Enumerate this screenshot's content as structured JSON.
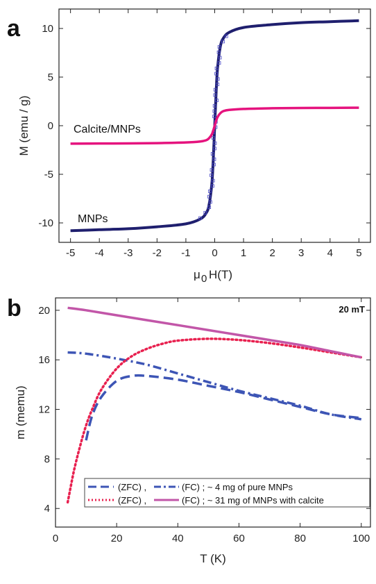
{
  "chart_data": [
    {
      "panel": "a",
      "type": "line",
      "xlabel": "H(T)",
      "xlabel_prefix": "μ",
      "xlabel_sub": "0",
      "ylabel": "M (emu / g)",
      "xlim": [
        -5.4,
        5.4
      ],
      "ylim": [
        -12,
        12
      ],
      "xticks": [
        -5,
        -4,
        -3,
        -2,
        -1,
        0,
        1,
        2,
        3,
        4,
        5
      ],
      "yticks": [
        -10,
        -5,
        0,
        5,
        10
      ],
      "colors": {
        "calcite": "#e5137e",
        "mnps": "#1f1f6e",
        "mnps_open": "#4a4ac8"
      },
      "annotations": [
        "Calcite/MNPs",
        "MNPs"
      ],
      "series": [
        {
          "name": "Calcite/MNPs",
          "x": [
            -5,
            -4,
            -3,
            -2,
            -1,
            -0.5,
            -0.3,
            -0.2,
            -0.1,
            -0.05,
            0,
            0.05,
            0.1,
            0.2,
            0.3,
            0.5,
            1,
            2,
            3,
            4,
            5
          ],
          "y": [
            -1.85,
            -1.83,
            -1.82,
            -1.79,
            -1.72,
            -1.62,
            -1.5,
            -1.3,
            -0.9,
            -0.5,
            0,
            0.5,
            0.9,
            1.3,
            1.5,
            1.62,
            1.72,
            1.79,
            1.82,
            1.83,
            1.85
          ]
        },
        {
          "name": "MNPs",
          "x": [
            -5,
            -4,
            -3,
            -2,
            -1,
            -0.5,
            -0.3,
            -0.2,
            -0.1,
            -0.05,
            0,
            0.05,
            0.1,
            0.2,
            0.3,
            0.5,
            1,
            2,
            3,
            4,
            5
          ],
          "y": [
            -10.8,
            -10.7,
            -10.6,
            -10.4,
            -10.1,
            -9.6,
            -9.0,
            -8.2,
            -6.0,
            -3.5,
            0,
            3.5,
            6.0,
            8.2,
            9.0,
            9.6,
            10.1,
            10.4,
            10.6,
            10.7,
            10.8
          ]
        }
      ]
    },
    {
      "panel": "b",
      "type": "line",
      "xlabel": "T (K)",
      "ylabel": "m (memu)",
      "xlim": [
        0,
        103
      ],
      "ylim": [
        2.5,
        21
      ],
      "xticks": [
        0,
        20,
        40,
        60,
        80,
        100
      ],
      "yticks": [
        4,
        8,
        12,
        16,
        20
      ],
      "field_label": "20 mT",
      "colors": {
        "mnps": "#3d55b5",
        "calcite_zfc": "#e8204f",
        "calcite_fc": "#c256a8"
      },
      "legend": {
        "row1": {
          "label_a": "(ZFC) ,",
          "label_b": "(FC) ; ~ 4 mg of pure MNPs"
        },
        "row2": {
          "label_a": "(ZFC) ,",
          "label_b": "(FC) ; ~ 31 mg of MNPs with calcite"
        }
      },
      "series": [
        {
          "key": "mnps_zfc",
          "x": [
            10,
            12,
            15,
            20,
            25,
            30,
            40,
            50,
            60,
            70,
            80,
            90,
            100
          ],
          "y": [
            9.5,
            11.5,
            13.0,
            14.3,
            14.7,
            14.7,
            14.4,
            13.9,
            13.4,
            12.8,
            12.2,
            11.6,
            11.3
          ]
        },
        {
          "key": "mnps_fc",
          "x": [
            4,
            10,
            20,
            30,
            40,
            50,
            60,
            70,
            80,
            90,
            100
          ],
          "y": [
            16.6,
            16.5,
            16.1,
            15.6,
            14.9,
            14.2,
            13.5,
            12.9,
            12.3,
            11.6,
            11.2
          ]
        },
        {
          "key": "calcite_zfc",
          "x": [
            4,
            6,
            8,
            10,
            12,
            15,
            20,
            25,
            30,
            35,
            40,
            50,
            60,
            70,
            80,
            90,
            100
          ],
          "y": [
            4.5,
            7.0,
            9.0,
            10.7,
            12.0,
            13.6,
            15.3,
            16.3,
            16.9,
            17.3,
            17.55,
            17.7,
            17.6,
            17.35,
            17.0,
            16.6,
            16.2
          ]
        },
        {
          "key": "calcite_fc",
          "x": [
            4,
            10,
            20,
            30,
            40,
            50,
            60,
            70,
            80,
            90,
            100
          ],
          "y": [
            20.2,
            20.0,
            19.6,
            19.2,
            18.8,
            18.4,
            18.0,
            17.6,
            17.2,
            16.7,
            16.2
          ]
        }
      ]
    }
  ]
}
